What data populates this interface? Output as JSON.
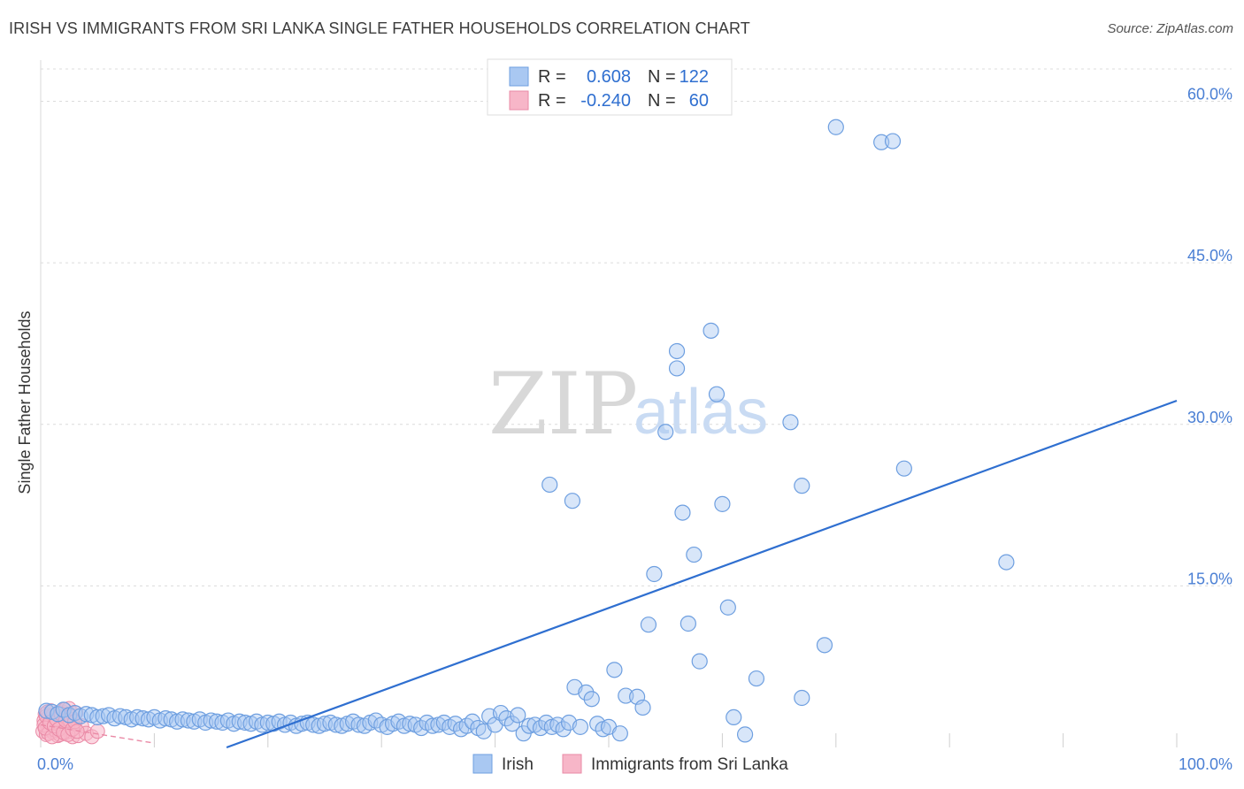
{
  "title": "IRISH VS IMMIGRANTS FROM SRI LANKA SINGLE FATHER HOUSEHOLDS CORRELATION CHART",
  "source": "Source: ZipAtlas.com",
  "watermark": {
    "zip": "ZIP",
    "atlas": "atlas"
  },
  "legend_top": {
    "rows": [
      {
        "r_label": "R =",
        "r_value": "0.608",
        "n_label": "N =",
        "n_value": "122",
        "color": "#a9c8f2",
        "border": "#6e9fe0"
      },
      {
        "r_label": "R =",
        "r_value": "-0.240",
        "n_label": "N =",
        "n_value": "60",
        "color": "#f7b6c8",
        "border": "#ea8aa6"
      }
    ]
  },
  "legend_bottom": [
    {
      "label": "Irish",
      "color": "#a9c8f2",
      "border": "#6e9fe0"
    },
    {
      "label": "Immigrants from Sri Lanka",
      "color": "#f7b6c8",
      "border": "#ea8aa6"
    }
  ],
  "chart_data": {
    "type": "scatter",
    "title": "IRISH VS IMMIGRANTS FROM SRI LANKA SINGLE FATHER HOUSEHOLDS CORRELATION CHART",
    "xlabel": "",
    "ylabel": "Single Father Households",
    "xlim": [
      0,
      100
    ],
    "ylim": [
      0,
      63
    ],
    "x_tick_labels": [
      "0.0%",
      "100.0%"
    ],
    "y_ticks": [
      15,
      30,
      45,
      60
    ],
    "y_tick_labels": [
      "15.0%",
      "30.0%",
      "45.0%",
      "60.0%"
    ],
    "grid": true,
    "series": [
      {
        "name": "Irish",
        "color": "#6e9fe0",
        "fill": "#a9c8f2",
        "points": [
          [
            0.5,
            3.4
          ],
          [
            1,
            3.3
          ],
          [
            1.5,
            3.1
          ],
          [
            2,
            3.5
          ],
          [
            2.5,
            3.0
          ],
          [
            3,
            3.2
          ],
          [
            3.5,
            2.9
          ],
          [
            4,
            3.1
          ],
          [
            4.5,
            3.0
          ],
          [
            5,
            2.8
          ],
          [
            5.5,
            2.9
          ],
          [
            6,
            3.0
          ],
          [
            6.5,
            2.7
          ],
          [
            7,
            2.9
          ],
          [
            7.5,
            2.8
          ],
          [
            8,
            2.6
          ],
          [
            8.5,
            2.8
          ],
          [
            9,
            2.7
          ],
          [
            9.5,
            2.6
          ],
          [
            10,
            2.8
          ],
          [
            10.5,
            2.5
          ],
          [
            11,
            2.7
          ],
          [
            11.5,
            2.6
          ],
          [
            12,
            2.4
          ],
          [
            12.5,
            2.6
          ],
          [
            13,
            2.5
          ],
          [
            13.5,
            2.4
          ],
          [
            14,
            2.6
          ],
          [
            14.5,
            2.3
          ],
          [
            15,
            2.5
          ],
          [
            15.5,
            2.4
          ],
          [
            16,
            2.3
          ],
          [
            16.5,
            2.5
          ],
          [
            17,
            2.2
          ],
          [
            17.5,
            2.4
          ],
          [
            18,
            2.3
          ],
          [
            18.5,
            2.2
          ],
          [
            19,
            2.4
          ],
          [
            19.5,
            2.1
          ],
          [
            20,
            2.3
          ],
          [
            20.5,
            2.2
          ],
          [
            21,
            2.4
          ],
          [
            21.5,
            2.1
          ],
          [
            22,
            2.3
          ],
          [
            22.5,
            2.0
          ],
          [
            23,
            2.2
          ],
          [
            23.5,
            2.3
          ],
          [
            24,
            2.1
          ],
          [
            24.5,
            2.0
          ],
          [
            25,
            2.2
          ],
          [
            25.5,
            2.3
          ],
          [
            26,
            2.1
          ],
          [
            26.5,
            2.0
          ],
          [
            27,
            2.2
          ],
          [
            27.5,
            2.4
          ],
          [
            28,
            2.1
          ],
          [
            28.5,
            2.0
          ],
          [
            29,
            2.3
          ],
          [
            29.5,
            2.5
          ],
          [
            30,
            2.1
          ],
          [
            30.5,
            1.9
          ],
          [
            31,
            2.2
          ],
          [
            31.5,
            2.4
          ],
          [
            32,
            2.0
          ],
          [
            32.5,
            2.2
          ],
          [
            33,
            2.1
          ],
          [
            33.5,
            1.8
          ],
          [
            34,
            2.3
          ],
          [
            34.5,
            2.0
          ],
          [
            35,
            2.1
          ],
          [
            35.5,
            2.3
          ],
          [
            36,
            1.9
          ],
          [
            36.5,
            2.2
          ],
          [
            37,
            1.7
          ],
          [
            37.5,
            2.0
          ],
          [
            38,
            2.4
          ],
          [
            38.5,
            1.8
          ],
          [
            39,
            1.5
          ],
          [
            39.5,
            2.9
          ],
          [
            40,
            2.1
          ],
          [
            40.5,
            3.2
          ],
          [
            41,
            2.7
          ],
          [
            41.5,
            2.2
          ],
          [
            42,
            3.0
          ],
          [
            42.5,
            1.3
          ],
          [
            43,
            2.0
          ],
          [
            43.5,
            2.1
          ],
          [
            44,
            1.8
          ],
          [
            44.5,
            2.3
          ],
          [
            45,
            1.9
          ],
          [
            45.5,
            2.1
          ],
          [
            46,
            1.7
          ],
          [
            46.5,
            2.3
          ],
          [
            47,
            5.6
          ],
          [
            47.5,
            1.9
          ],
          [
            48,
            5.1
          ],
          [
            48.5,
            4.5
          ],
          [
            49,
            2.2
          ],
          [
            49.5,
            1.7
          ],
          [
            50,
            1.9
          ],
          [
            50.5,
            7.2
          ],
          [
            51,
            1.3
          ],
          [
            51.5,
            4.8
          ],
          [
            52.5,
            4.7
          ],
          [
            53,
            3.7
          ],
          [
            53.5,
            11.4
          ],
          [
            54,
            16.1
          ],
          [
            55,
            29.3
          ],
          [
            56,
            36.8
          ],
          [
            56,
            35.2
          ],
          [
            56.5,
            21.8
          ],
          [
            57,
            11.5
          ],
          [
            57.5,
            17.9
          ],
          [
            58,
            8.0
          ],
          [
            59,
            38.7
          ],
          [
            59.5,
            32.8
          ],
          [
            60,
            22.6
          ],
          [
            60.5,
            13.0
          ],
          [
            61,
            2.8
          ],
          [
            62,
            1.2
          ],
          [
            63,
            6.4
          ],
          [
            66,
            30.2
          ],
          [
            67,
            24.3
          ],
          [
            67,
            4.6
          ],
          [
            69,
            9.5
          ],
          [
            70,
            57.6
          ],
          [
            74,
            56.2
          ],
          [
            75,
            56.3
          ],
          [
            76,
            25.9
          ],
          [
            85,
            17.2
          ],
          [
            44.8,
            24.4
          ],
          [
            46.8,
            22.9
          ]
        ]
      },
      {
        "name": "Immigrants from Sri Lanka",
        "color": "#ea8aa6",
        "fill": "#f7b6c8",
        "points": [
          [
            0.2,
            1.5
          ],
          [
            0.3,
            2.5
          ],
          [
            0.4,
            3.1
          ],
          [
            0.5,
            1.2
          ],
          [
            0.6,
            2.0
          ],
          [
            0.7,
            2.8
          ],
          [
            0.8,
            1.7
          ],
          [
            0.9,
            3.4
          ],
          [
            1.0,
            2.2
          ],
          [
            1.1,
            1.4
          ],
          [
            1.2,
            2.6
          ],
          [
            1.3,
            1.9
          ],
          [
            1.4,
            3.0
          ],
          [
            1.5,
            1.1
          ],
          [
            1.6,
            2.3
          ],
          [
            1.7,
            2.7
          ],
          [
            1.8,
            1.6
          ],
          [
            1.9,
            3.3
          ],
          [
            2.0,
            2.0
          ],
          [
            2.1,
            1.3
          ],
          [
            2.2,
            2.9
          ],
          [
            2.3,
            1.8
          ],
          [
            2.4,
            2.4
          ],
          [
            2.5,
            3.6
          ],
          [
            2.6,
            1.5
          ],
          [
            2.7,
            2.1
          ],
          [
            2.8,
            1.0
          ],
          [
            2.9,
            2.6
          ],
          [
            3.0,
            1.9
          ],
          [
            3.1,
            3.2
          ],
          [
            0.3,
            2.1
          ],
          [
            0.5,
            2.9
          ],
          [
            0.7,
            1.3
          ],
          [
            0.9,
            2.4
          ],
          [
            1.1,
            3.0
          ],
          [
            1.3,
            1.6
          ],
          [
            1.5,
            2.8
          ],
          [
            1.7,
            1.2
          ],
          [
            1.9,
            2.2
          ],
          [
            2.1,
            3.5
          ],
          [
            0.4,
            1.8
          ],
          [
            0.6,
            3.3
          ],
          [
            0.8,
            2.3
          ],
          [
            1.0,
            1.0
          ],
          [
            1.2,
            2.0
          ],
          [
            1.4,
            2.6
          ],
          [
            1.6,
            1.7
          ],
          [
            1.8,
            3.1
          ],
          [
            2.0,
            1.4
          ],
          [
            2.2,
            2.5
          ],
          [
            3.3,
            1.1
          ],
          [
            3.6,
            2.0
          ],
          [
            4.0,
            1.3
          ],
          [
            4.5,
            1.0
          ],
          [
            5.0,
            1.5
          ],
          [
            2.4,
            1.2
          ],
          [
            2.6,
            2.9
          ],
          [
            2.8,
            1.7
          ],
          [
            3.0,
            2.4
          ],
          [
            3.2,
            1.5
          ]
        ]
      }
    ],
    "trendlines": [
      {
        "series": "Irish",
        "x": [
          0,
          100
        ],
        "y": [
          -6.3,
          32.2
        ],
        "style": "solid"
      },
      {
        "series": "Immigrants from Sri Lanka",
        "x": [
          0,
          10
        ],
        "y": [
          2.1,
          0.4
        ],
        "style": "dashed"
      }
    ]
  }
}
